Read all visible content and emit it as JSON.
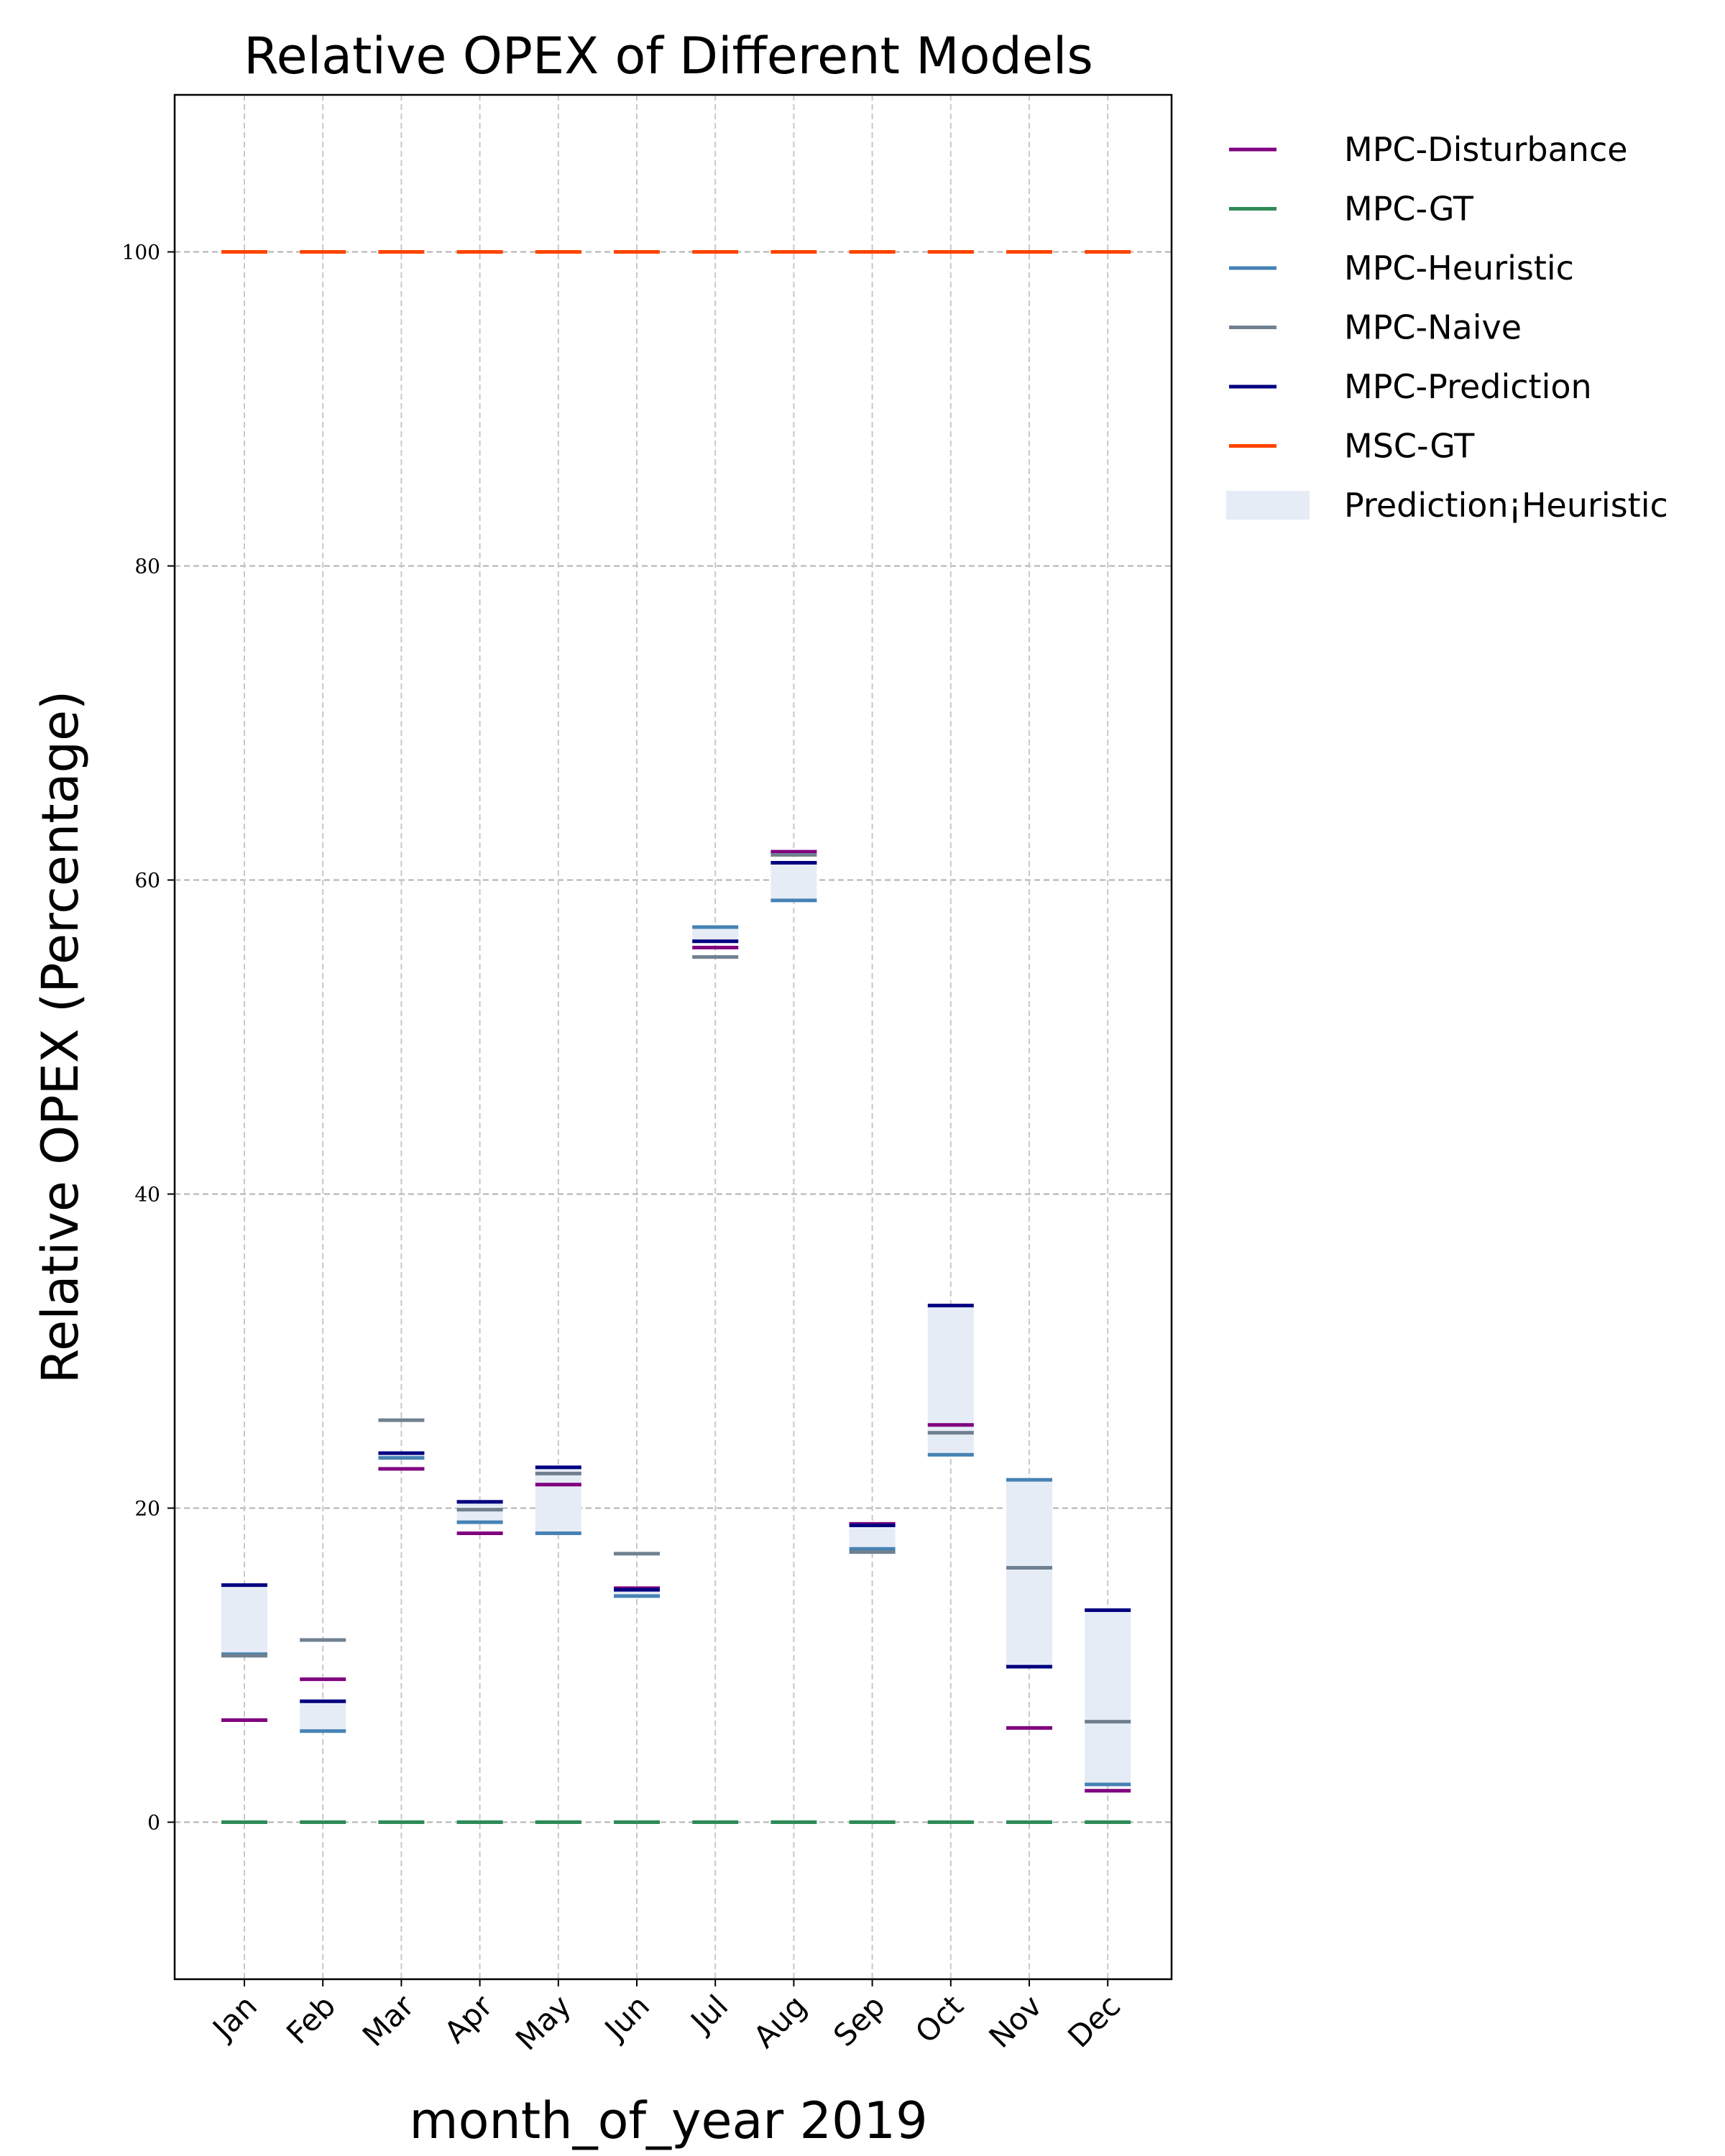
{
  "chart_data": {
    "type": "bar",
    "title": "Relative OPEX of Different Models",
    "xlabel": "month_of_year 2019",
    "ylabel": "Relative OPEX (Percentage)",
    "ylim": [
      -10,
      110
    ],
    "yticks": [
      0,
      20,
      40,
      60,
      80,
      100
    ],
    "grid": true,
    "legend_position": "outside-right-top",
    "categories": [
      "Jan",
      "Feb",
      "Mar",
      "Apr",
      "May",
      "Jun",
      "Jul",
      "Aug",
      "Sep",
      "Oct",
      "Nov",
      "Dec"
    ],
    "series": [
      {
        "name": "MPC-Disturbance",
        "color": "#800080",
        "values": [
          6.5,
          9.1,
          22.5,
          18.4,
          21.5,
          14.9,
          55.7,
          61.8,
          19.0,
          25.3,
          6.0,
          2.0
        ]
      },
      {
        "name": "MPC-GT",
        "color": "#2e8b57",
        "values": [
          0,
          0,
          0,
          0,
          0,
          0,
          0,
          0,
          0,
          0,
          0,
          0
        ]
      },
      {
        "name": "MPC-Heuristic",
        "color": "#4682b4",
        "values": [
          10.7,
          5.8,
          23.2,
          19.1,
          18.4,
          14.4,
          57.0,
          58.7,
          17.4,
          23.4,
          21.8,
          2.4
        ]
      },
      {
        "name": "MPC-Naive",
        "color": "#708090",
        "values": [
          10.6,
          11.6,
          25.6,
          19.9,
          22.2,
          17.1,
          55.1,
          61.6,
          17.2,
          24.8,
          16.2,
          6.4
        ]
      },
      {
        "name": "MPC-Prediction",
        "color": "#000080",
        "values": [
          15.1,
          7.7,
          23.5,
          20.4,
          22.6,
          14.8,
          56.1,
          61.1,
          18.9,
          32.9,
          9.9,
          13.5
        ]
      },
      {
        "name": "MSC-GT",
        "color": "#ff4500",
        "values": [
          100,
          100,
          100,
          100,
          100,
          100,
          100,
          100,
          100,
          100,
          100,
          100
        ]
      }
    ],
    "shaded_range": {
      "name": "Prediction¡Heuristic",
      "color": "#e6ecf5",
      "from_series": "MPC-Heuristic",
      "to_series": "MPC-Prediction"
    }
  }
}
